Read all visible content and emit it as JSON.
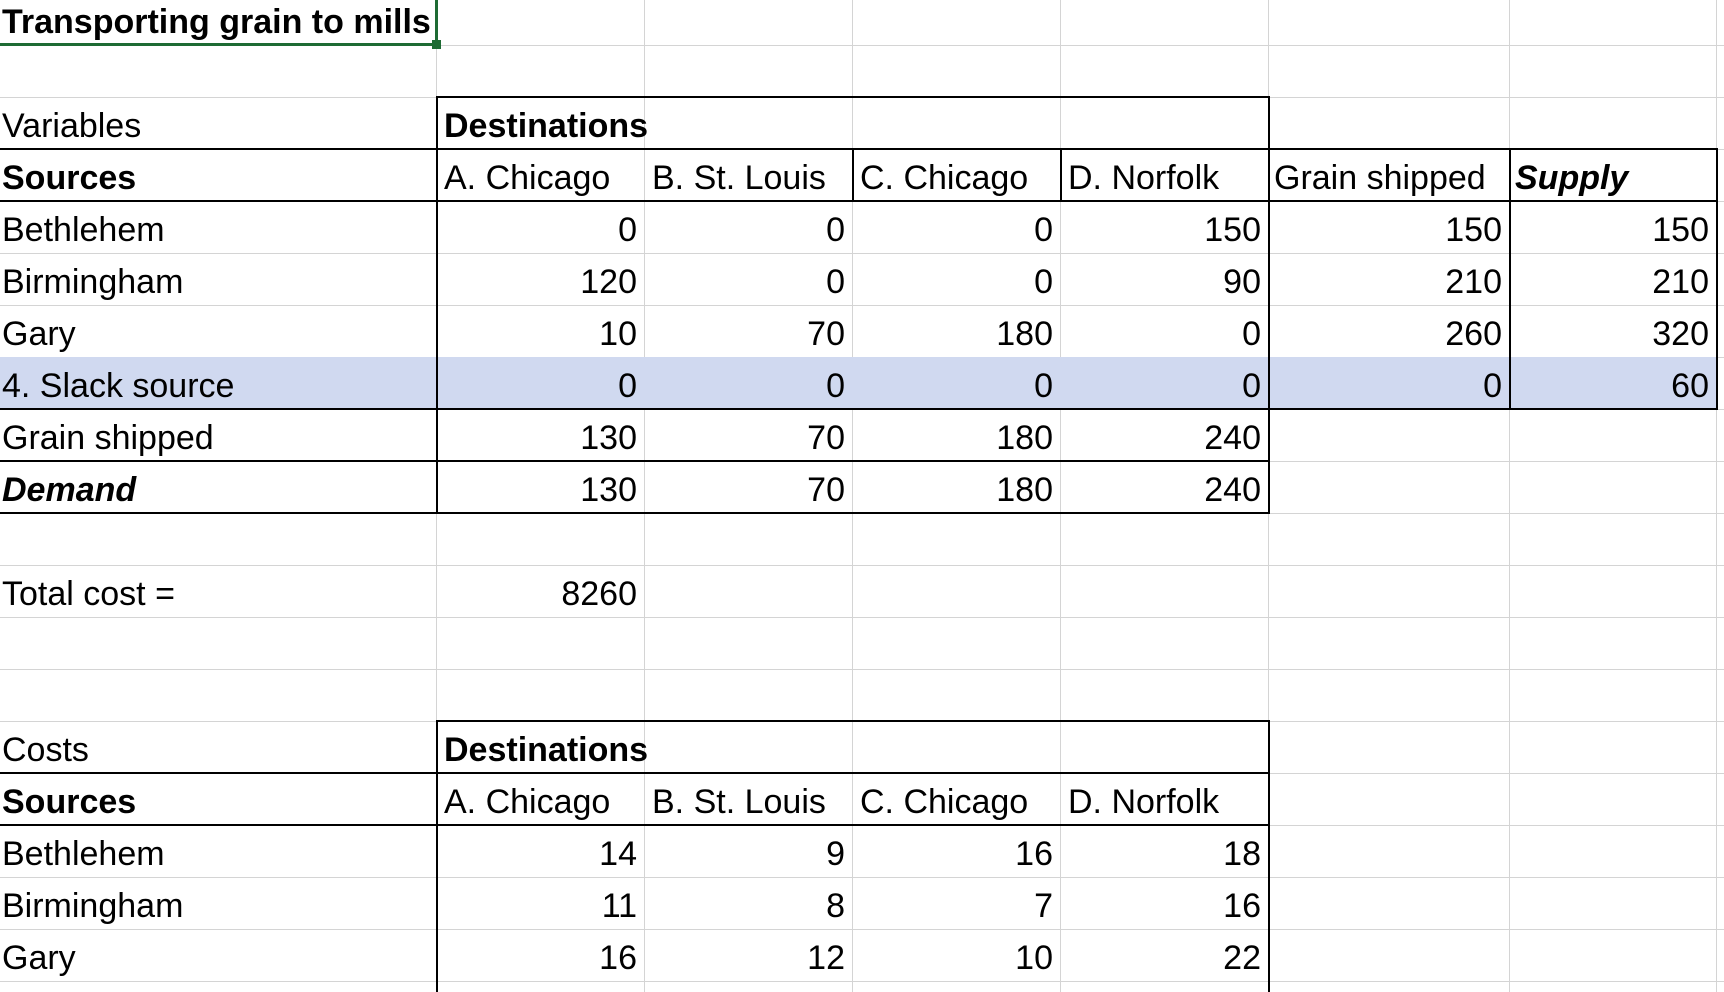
{
  "title": "Transporting grain to mills",
  "variables": {
    "section_label": "Variables",
    "group_header": "Destinations",
    "sources_header": "Sources",
    "columns": [
      "A. Chicago",
      "B. St. Louis",
      "C. Chicago",
      "D. Norfolk",
      "Grain shipped",
      "Supply"
    ],
    "rows": [
      {
        "label": "Bethlehem",
        "values": [
          "0",
          "0",
          "0",
          "150",
          "150",
          "150"
        ]
      },
      {
        "label": "Birmingham",
        "values": [
          "120",
          "0",
          "0",
          "90",
          "210",
          "210"
        ]
      },
      {
        "label": "Gary",
        "values": [
          "10",
          "70",
          "180",
          "0",
          "260",
          "320"
        ]
      },
      {
        "label": "4. Slack source",
        "values": [
          "0",
          "0",
          "0",
          "0",
          "0",
          "60"
        ]
      },
      {
        "label": "Grain shipped",
        "values": [
          "130",
          "70",
          "180",
          "240"
        ]
      },
      {
        "label": "Demand",
        "values": [
          "130",
          "70",
          "180",
          "240"
        ]
      }
    ]
  },
  "total_cost": {
    "label": "Total cost =",
    "value": "8260"
  },
  "costs": {
    "section_label": "Costs",
    "group_header": "Destinations",
    "sources_header": "Sources",
    "columns": [
      "A. Chicago",
      "B. St. Louis",
      "C. Chicago",
      "D. Norfolk"
    ],
    "rows": [
      {
        "label": "Bethlehem",
        "values": [
          "14",
          "9",
          "16",
          "18"
        ]
      },
      {
        "label": "Birmingham",
        "values": [
          "11",
          "8",
          "7",
          "16"
        ]
      },
      {
        "label": "Gary",
        "values": [
          "16",
          "12",
          "10",
          "22"
        ]
      }
    ]
  },
  "colors": {
    "highlight_row": "#d0d9f0",
    "gridline": "#d4d4d4",
    "selection": "#1e6b34"
  }
}
